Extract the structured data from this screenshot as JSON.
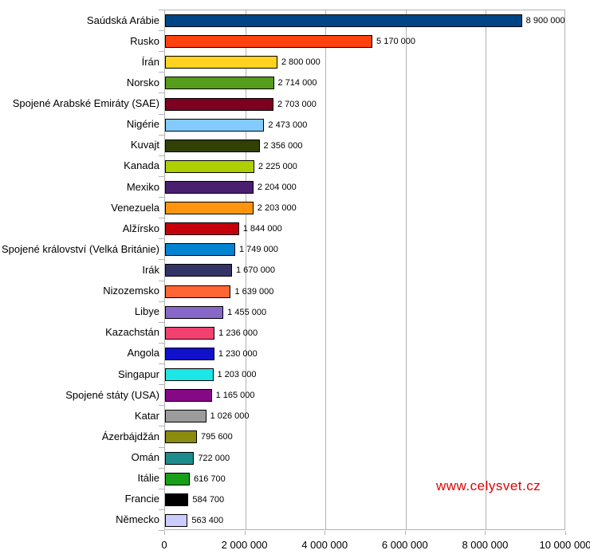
{
  "watermark": {
    "text": "www.celysvet.cz",
    "color": "#e60000"
  },
  "axis": {
    "color": "#b3b3b3",
    "label_color": "#000000"
  },
  "chart_data": {
    "type": "bar",
    "orientation": "horizontal",
    "title": "",
    "xlabel": "",
    "ylabel": "",
    "grid": "vertical-major",
    "legend": "none",
    "xlim": [
      0,
      10000000
    ],
    "x_ticks": {
      "values": [
        0,
        2000000,
        4000000,
        6000000,
        8000000,
        10000000
      ],
      "labels": [
        "0",
        "2 000 000",
        "4 000 000",
        "6 000 000",
        "8 000 000",
        "10 000 000"
      ]
    },
    "categories": [
      "Saúdská Arábie",
      "Rusko",
      "Írán",
      "Norsko",
      "Spojené Arabské Emiráty (SAE)",
      "Nigérie",
      "Kuvajt",
      "Kanada",
      "Mexiko",
      "Venezuela",
      "Alžírsko",
      "Spojené království (Velká Británie)",
      "Irák",
      "Nizozemsko",
      "Libye",
      "Kazachstán",
      "Angola",
      "Singapur",
      "Spojené státy (USA)",
      "Katar",
      "Ázerbájdžán",
      "Omán",
      "Itálie",
      "Francie",
      "Německo"
    ],
    "values": [
      8900000,
      5170000,
      2800000,
      2714000,
      2703000,
      2473000,
      2356000,
      2225000,
      2204000,
      2203000,
      1844000,
      1749000,
      1670000,
      1639000,
      1455000,
      1236000,
      1230000,
      1203000,
      1165000,
      1026000,
      795600,
      722000,
      616700,
      584700,
      563400
    ],
    "value_labels": [
      "8 900 000",
      "5 170 000",
      "2 800 000",
      "2 714 000",
      "2 703 000",
      "2 473 000",
      "2 356 000",
      "2 225 000",
      "2 204 000",
      "2 203 000",
      "1 844 000",
      "1 749 000",
      "1 670 000",
      "1 639 000",
      "1 455 000",
      "1 236 000",
      "1 230 000",
      "1 203 000",
      "1 165 000",
      "1 026 000",
      "795 600",
      "722 000",
      "616 700",
      "584 700",
      "563 400"
    ],
    "bar_colors": [
      "#004586",
      "#ff420e",
      "#ffd320",
      "#579d1c",
      "#7e0021",
      "#83caff",
      "#314004",
      "#aecf00",
      "#4b1f6f",
      "#ff950e",
      "#c5000b",
      "#0084d1",
      "#333366",
      "#ff6633",
      "#8767c8",
      "#f2416f",
      "#1111cc",
      "#1ce6e6",
      "#850885",
      "#9c9c9c",
      "#8b8b0e",
      "#1e8c8c",
      "#17a017",
      "#000000",
      "#ccccff"
    ],
    "bar_border_color": "#000000"
  }
}
